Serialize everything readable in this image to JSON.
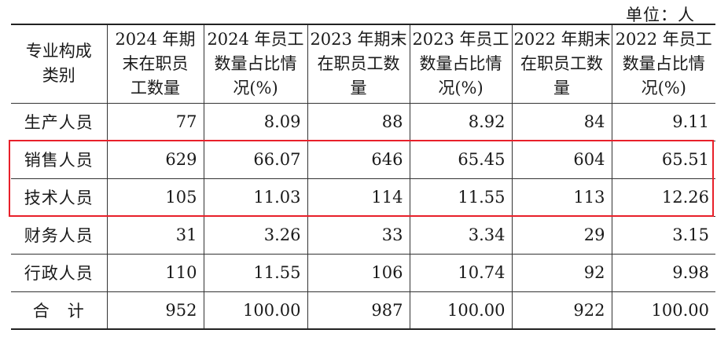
{
  "unit_label": "单位：人",
  "table": {
    "headers": [
      [
        "专业构成",
        "类别"
      ],
      [
        "2024 年期",
        "末在职员",
        "工数量"
      ],
      [
        "2024 年员工",
        "数量占比情",
        "况(%)"
      ],
      [
        "2023 年期末",
        "在职员工数",
        "量"
      ],
      [
        "2023 年员工",
        "数量占比情",
        "况(%)"
      ],
      [
        "2022 年期末",
        "在职员工数",
        "量"
      ],
      [
        "2022 年员工",
        "数量占比情",
        "况(%)"
      ]
    ],
    "rows": [
      [
        "生产人员",
        "77",
        "8.09",
        "88",
        "8.92",
        "84",
        "9.11"
      ],
      [
        "销售人员",
        "629",
        "66.07",
        "646",
        "65.45",
        "604",
        "65.51"
      ],
      [
        "技术人员",
        "105",
        "11.03",
        "114",
        "11.55",
        "113",
        "12.26"
      ],
      [
        "财务人员",
        "31",
        "3.26",
        "33",
        "3.34",
        "29",
        "3.15"
      ],
      [
        "行政人员",
        "110",
        "11.55",
        "106",
        "10.74",
        "92",
        "9.98"
      ],
      [
        "合　计",
        "952",
        "100.00",
        "987",
        "100.00",
        "922",
        "100.00"
      ]
    ]
  },
  "highlight": {
    "color": "#e8202a",
    "rows": [
      "销售人员",
      "技术人员"
    ]
  }
}
